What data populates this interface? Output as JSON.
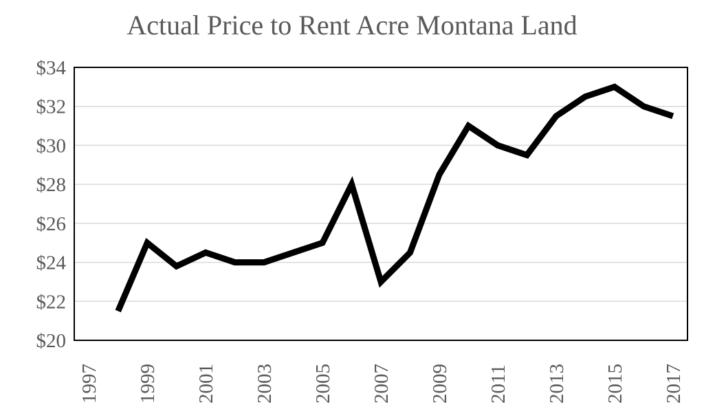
{
  "chart_data": {
    "type": "line",
    "title": "Actual Price to Rent Acre Montana Land",
    "xlabel": "",
    "ylabel": "",
    "xlim": [
      1996.5,
      2017.5
    ],
    "ylim": [
      20,
      34
    ],
    "grid": true,
    "legend": "none",
    "x_ticks": [
      "1997",
      "1999",
      "2001",
      "2003",
      "2005",
      "2007",
      "2009",
      "2011",
      "2013",
      "2015",
      "2017"
    ],
    "y_ticks": [
      "$20",
      "$22",
      "$24",
      "$26",
      "$28",
      "$30",
      "$32",
      "$34"
    ],
    "series": [
      {
        "name": "Price to Rent",
        "color": "#000000",
        "x": [
          1998,
          1999,
          2000,
          2001,
          2002,
          2003,
          2004,
          2005,
          2006,
          2007,
          2008,
          2009,
          2010,
          2011,
          2012,
          2013,
          2014,
          2015,
          2016,
          2017
        ],
        "values": [
          21.5,
          25.0,
          23.8,
          24.5,
          24.0,
          24.0,
          24.5,
          25.0,
          28.0,
          23.0,
          24.5,
          28.5,
          31.0,
          30.0,
          29.5,
          31.5,
          32.5,
          33.0,
          32.0,
          31.5
        ]
      }
    ]
  }
}
